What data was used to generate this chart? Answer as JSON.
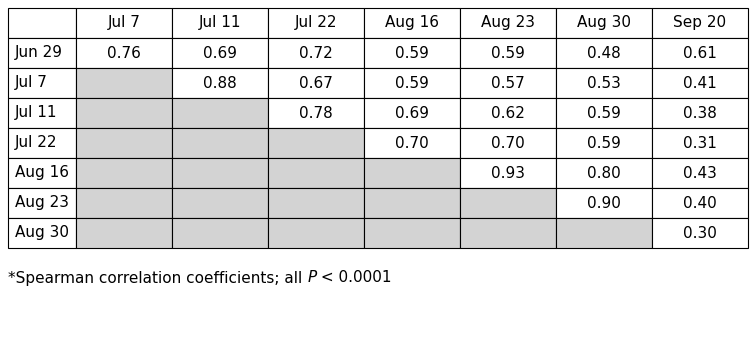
{
  "col_headers": [
    "Jul 7",
    "Jul 11",
    "Jul 22",
    "Aug 16",
    "Aug 23",
    "Aug 30",
    "Sep 20"
  ],
  "row_headers": [
    "Jun 29",
    "Jul 7",
    "Jul 11",
    "Jul 22",
    "Aug 16",
    "Aug 23",
    "Aug 30"
  ],
  "values": [
    [
      "0.76",
      "0.69",
      "0.72",
      "0.59",
      "0.59",
      "0.48",
      "0.61"
    ],
    [
      null,
      "0.88",
      "0.67",
      "0.59",
      "0.57",
      "0.53",
      "0.41"
    ],
    [
      null,
      null,
      "0.78",
      "0.69",
      "0.62",
      "0.59",
      "0.38"
    ],
    [
      null,
      null,
      null,
      "0.70",
      "0.70",
      "0.59",
      "0.31"
    ],
    [
      null,
      null,
      null,
      null,
      "0.93",
      "0.80",
      "0.43"
    ],
    [
      null,
      null,
      null,
      null,
      null,
      "0.90",
      "0.40"
    ],
    [
      null,
      null,
      null,
      null,
      null,
      null,
      "0.30"
    ]
  ],
  "gray_color": "#d3d3d3",
  "white_color": "#ffffff",
  "border_color": "#000000",
  "text_color": "#000000",
  "font_size": 11,
  "footnote_normal1": "*Spearman correlation coefficients; all ",
  "footnote_italic": "P",
  "footnote_normal2": " < 0.0001"
}
